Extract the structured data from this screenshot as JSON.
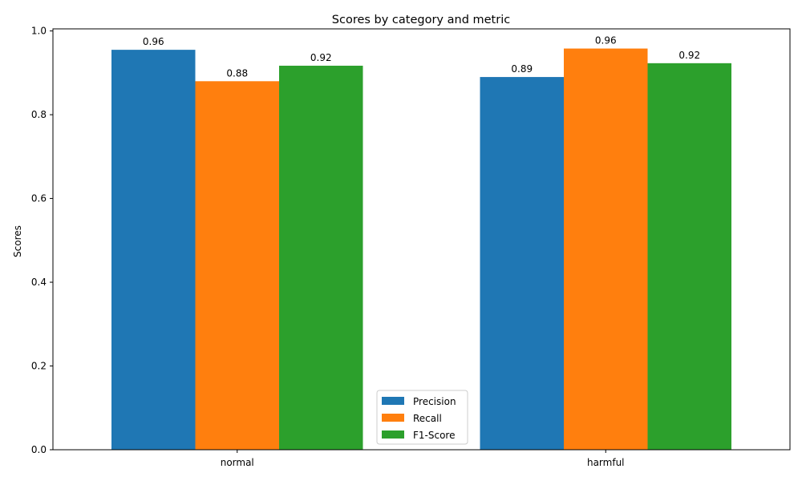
{
  "chart_data": {
    "type": "bar",
    "title": "Scores by category and metric",
    "xlabel": "",
    "ylabel": "Scores",
    "categories": [
      "normal",
      "harmful"
    ],
    "series": [
      {
        "name": "Precision",
        "color": "#1f77b4",
        "values": [
          0.955,
          0.89
        ],
        "labels": [
          "0.96",
          "0.89"
        ]
      },
      {
        "name": "Recall",
        "color": "#ff7f0e",
        "values": [
          0.88,
          0.958
        ],
        "labels": [
          "0.88",
          "0.96"
        ]
      },
      {
        "name": "F1-Score",
        "color": "#2ca02c",
        "values": [
          0.917,
          0.923
        ],
        "labels": [
          "0.92",
          "0.92"
        ]
      }
    ],
    "ylim": [
      0,
      1.0
    ],
    "yticks": [
      0.0,
      0.2,
      0.4,
      0.6,
      0.8,
      1.0
    ],
    "ytick_labels": [
      "0.0",
      "0.2",
      "0.4",
      "0.6",
      "0.8",
      "1.0"
    ],
    "grid": false,
    "legend_position": "bottom-center"
  }
}
